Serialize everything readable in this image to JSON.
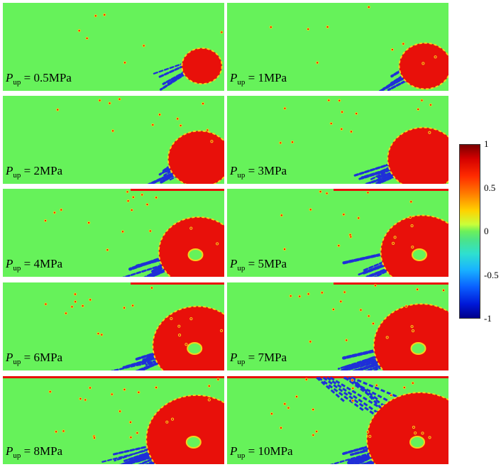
{
  "chart_data": {
    "type": "heatmap",
    "panels": [
      {
        "label_var": "P",
        "label_sub": "up",
        "label_value": "= 0.5MPa"
      },
      {
        "label_var": "P",
        "label_sub": "up",
        "label_value": "= 1MPa"
      },
      {
        "label_var": "P",
        "label_sub": "up",
        "label_value": "= 2MPa"
      },
      {
        "label_var": "P",
        "label_sub": "up",
        "label_value": "= 3MPa"
      },
      {
        "label_var": "P",
        "label_sub": "up",
        "label_value": "= 4MPa"
      },
      {
        "label_var": "P",
        "label_sub": "up",
        "label_value": "= 5MPa"
      },
      {
        "label_var": "P",
        "label_sub": "up",
        "label_value": "= 6MPa"
      },
      {
        "label_var": "P",
        "label_sub": "up",
        "label_value": "= 7MPa"
      },
      {
        "label_var": "P",
        "label_sub": "up",
        "label_value": "= 8MPa"
      },
      {
        "label_var": "P",
        "label_sub": "up",
        "label_value": "= 10MPa"
      }
    ],
    "colorbar": {
      "range": [
        -1,
        1
      ],
      "ticks": [
        "1",
        "0.5",
        "0",
        "-0.5",
        "-1"
      ],
      "colormap": "jet"
    },
    "colors": {
      "background": "#66f25a",
      "positive": "#e8100a",
      "negative": "#1f2fd8",
      "edge": "#f5d21a"
    }
  }
}
